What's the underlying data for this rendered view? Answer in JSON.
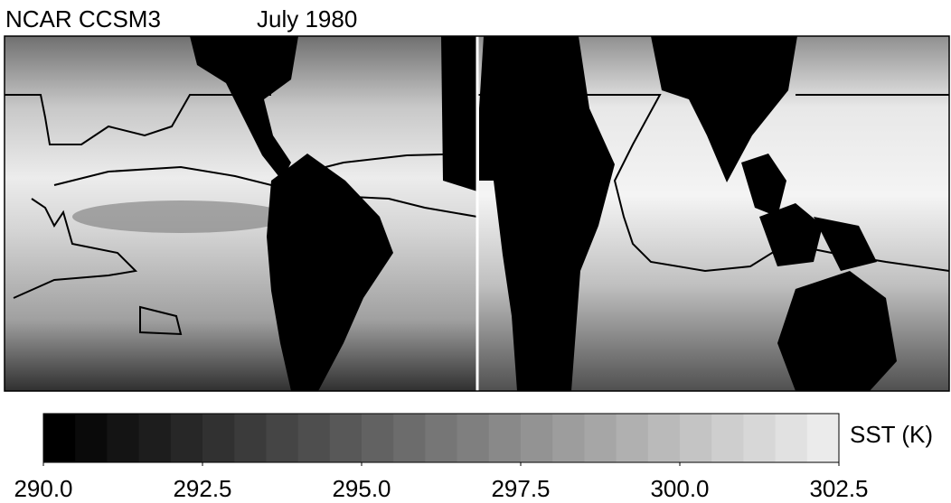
{
  "header": {
    "model": "NCAR CCSM3",
    "date": "July 1980"
  },
  "colorbar": {
    "label": "SST (K)",
    "range": [
      290,
      302.5
    ],
    "ticks": [
      {
        "value": 290,
        "label": "290.0"
      },
      {
        "value": 292.5,
        "label": "292.5"
      },
      {
        "value": 295,
        "label": "295.0"
      },
      {
        "value": 297.5,
        "label": "297.5"
      },
      {
        "value": 300,
        "label": "300.0"
      },
      {
        "value": 302.5,
        "label": "302.5"
      }
    ]
  }
}
